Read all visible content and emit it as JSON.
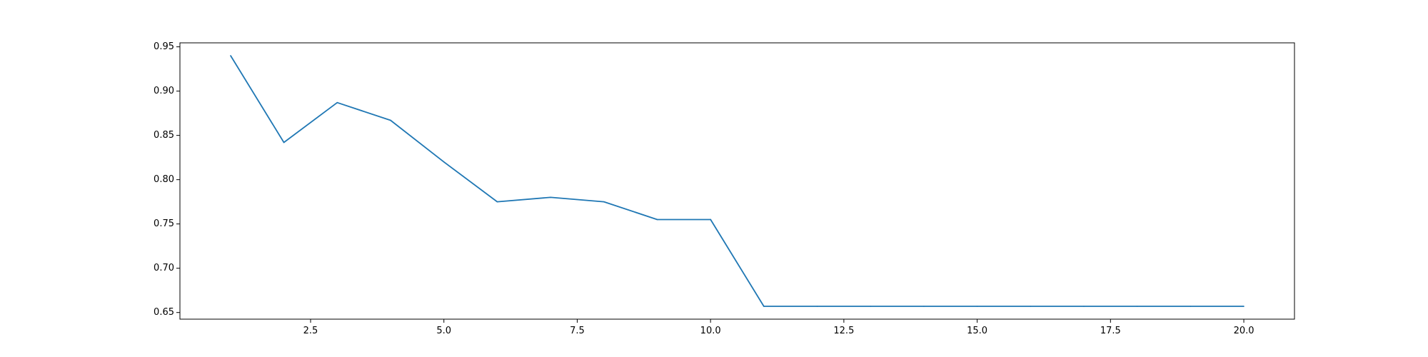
{
  "chart_data": {
    "type": "line",
    "title": "",
    "xlabel": "",
    "ylabel": "",
    "xlim": [
      0.05,
      20.95
    ],
    "ylim": [
      0.6425,
      0.9545
    ],
    "grid": false,
    "x_ticks": [
      2.5,
      5.0,
      7.5,
      10.0,
      12.5,
      15.0,
      17.5,
      20.0
    ],
    "x_tick_labels": [
      "2.5",
      "5.0",
      "7.5",
      "10.0",
      "12.5",
      "15.0",
      "17.5",
      "20.0"
    ],
    "y_ticks": [
      0.65,
      0.7,
      0.75,
      0.8,
      0.85,
      0.9,
      0.95
    ],
    "y_tick_labels": [
      "0.65",
      "0.70",
      "0.75",
      "0.80",
      "0.85",
      "0.90",
      "0.95"
    ],
    "series": [
      {
        "color": "#1f77b4",
        "x": [
          1,
          2,
          3,
          4,
          5,
          6,
          7,
          8,
          9,
          10,
          11,
          12,
          13,
          14,
          15,
          16,
          17,
          18,
          19,
          20
        ],
        "y": [
          0.94,
          0.842,
          0.887,
          0.867,
          0.82,
          0.775,
          0.78,
          0.775,
          0.755,
          0.755,
          0.657,
          0.657,
          0.657,
          0.657,
          0.657,
          0.657,
          0.657,
          0.657,
          0.657,
          0.657
        ]
      }
    ]
  }
}
